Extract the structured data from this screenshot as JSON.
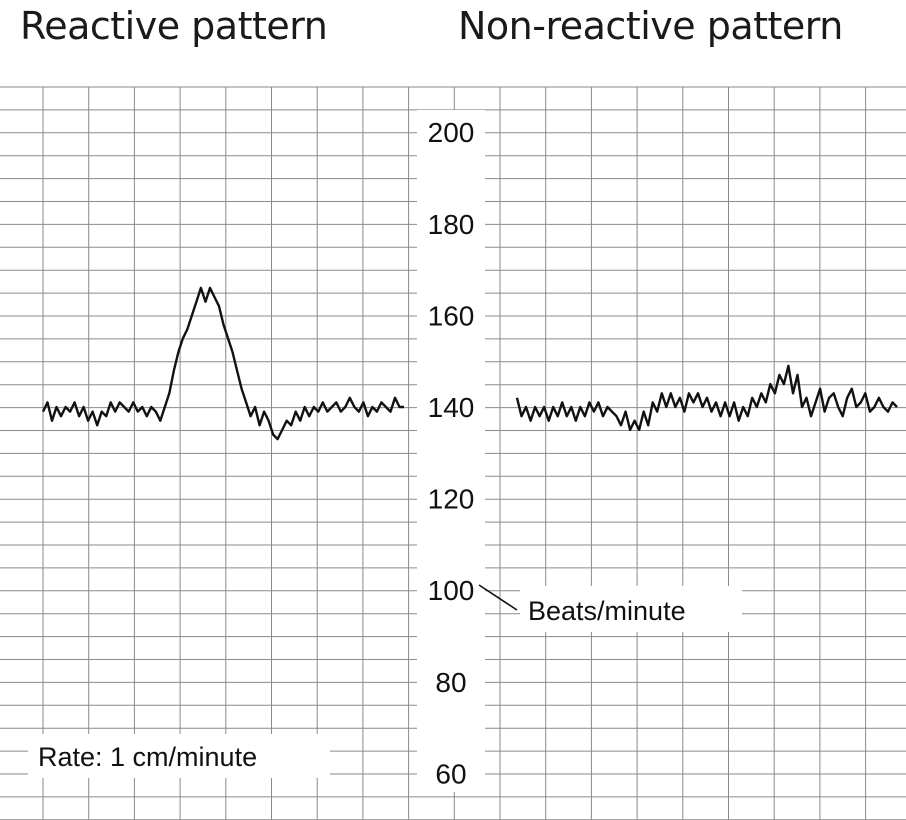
{
  "titles": {
    "left": "Reactive pattern",
    "right": "Non-reactive pattern"
  },
  "annotations": {
    "unit_label": "Beats/minute",
    "rate_label": "Rate: 1 cm/minute"
  },
  "colors": {
    "grid": "#8a8a8a",
    "trace": "#111111",
    "background": "#ffffff"
  },
  "chart_data": [
    {
      "type": "line",
      "title": "Reactive pattern",
      "ylabel": "Beats/minute",
      "ylim": [
        58,
        208
      ],
      "yticks": [
        200,
        180,
        160,
        140,
        120,
        100,
        80,
        60
      ],
      "grid": true,
      "x": [
        0.0,
        0.1,
        0.2,
        0.3,
        0.4,
        0.5,
        0.6,
        0.7,
        0.8,
        0.9,
        1.0,
        1.1,
        1.2,
        1.3,
        1.4,
        1.5,
        1.6,
        1.7,
        1.8,
        1.9,
        2.0,
        2.1,
        2.2,
        2.3,
        2.4,
        2.5,
        2.6,
        2.7,
        2.8,
        2.9,
        3.0,
        3.1,
        3.2,
        3.3,
        3.4,
        3.5,
        3.6,
        3.7,
        3.8,
        3.9,
        4.0,
        4.1,
        4.2,
        4.3,
        4.4,
        4.5,
        4.6,
        4.7,
        4.8,
        4.9,
        5.0,
        5.1,
        5.2,
        5.3,
        5.4,
        5.5,
        5.6,
        5.7,
        5.8,
        5.9,
        6.0,
        6.1,
        6.2,
        6.3,
        6.4,
        6.5,
        6.6,
        6.7,
        6.8,
        6.9,
        7.0,
        7.1,
        7.2,
        7.3,
        7.4,
        7.5,
        7.6,
        7.7,
        7.8,
        7.9,
        8.0
      ],
      "series": [
        {
          "values": [
            139,
            141,
            137,
            140,
            138,
            140,
            139,
            141,
            138,
            140,
            137,
            139,
            136,
            139,
            138,
            141,
            139,
            141,
            140,
            139,
            141,
            139,
            140,
            138,
            140,
            139,
            137,
            140,
            143,
            148,
            152,
            155,
            157,
            160,
            163,
            166,
            163,
            166,
            164,
            162,
            158,
            155,
            152,
            148,
            144,
            141,
            138,
            140,
            136,
            139,
            137,
            134,
            133,
            135,
            137,
            136,
            139,
            137,
            140,
            138,
            140,
            139,
            141,
            139,
            140,
            141,
            139,
            140,
            142,
            140,
            139,
            141,
            138,
            140,
            139,
            141,
            140,
            139,
            142,
            140,
            140
          ]
        }
      ]
    },
    {
      "type": "line",
      "title": "Non-reactive pattern",
      "ylabel": "Beats/minute",
      "ylim": [
        58,
        208
      ],
      "yticks": [
        200,
        180,
        160,
        140,
        120,
        100,
        80,
        60
      ],
      "grid": true,
      "x": [
        0.0,
        0.1,
        0.2,
        0.3,
        0.4,
        0.5,
        0.6,
        0.7,
        0.8,
        0.9,
        1.0,
        1.1,
        1.2,
        1.3,
        1.4,
        1.5,
        1.6,
        1.7,
        1.8,
        1.9,
        2.0,
        2.1,
        2.2,
        2.3,
        2.4,
        2.5,
        2.6,
        2.7,
        2.8,
        2.9,
        3.0,
        3.1,
        3.2,
        3.3,
        3.4,
        3.5,
        3.6,
        3.7,
        3.8,
        3.9,
        4.0,
        4.1,
        4.2,
        4.3,
        4.4,
        4.5,
        4.6,
        4.7,
        4.8,
        4.9,
        5.0,
        5.1,
        5.2,
        5.3,
        5.4,
        5.5,
        5.6,
        5.7,
        5.8,
        5.9,
        6.0,
        6.1,
        6.2,
        6.3,
        6.4,
        6.5,
        6.6,
        6.7,
        6.8,
        6.9,
        7.0,
        7.1,
        7.2,
        7.3,
        7.4,
        7.5,
        7.6,
        7.7,
        7.8,
        7.9,
        8.0,
        8.1,
        8.2,
        8.3,
        8.4
      ],
      "series": [
        {
          "values": [
            142,
            138,
            140,
            137,
            140,
            138,
            140,
            137,
            140,
            138,
            141,
            138,
            140,
            137,
            140,
            138,
            141,
            139,
            141,
            138,
            140,
            139,
            138,
            136,
            139,
            135,
            137,
            135,
            139,
            136,
            141,
            139,
            143,
            140,
            143,
            140,
            142,
            139,
            143,
            141,
            143,
            140,
            142,
            139,
            141,
            138,
            141,
            138,
            141,
            137,
            140,
            138,
            142,
            140,
            143,
            141,
            145,
            143,
            147,
            145,
            149,
            143,
            147,
            140,
            142,
            138,
            141,
            144,
            139,
            142,
            143,
            140,
            138,
            142,
            144,
            140,
            141,
            143,
            139,
            140,
            142,
            140,
            139,
            141,
            140
          ]
        }
      ]
    }
  ]
}
